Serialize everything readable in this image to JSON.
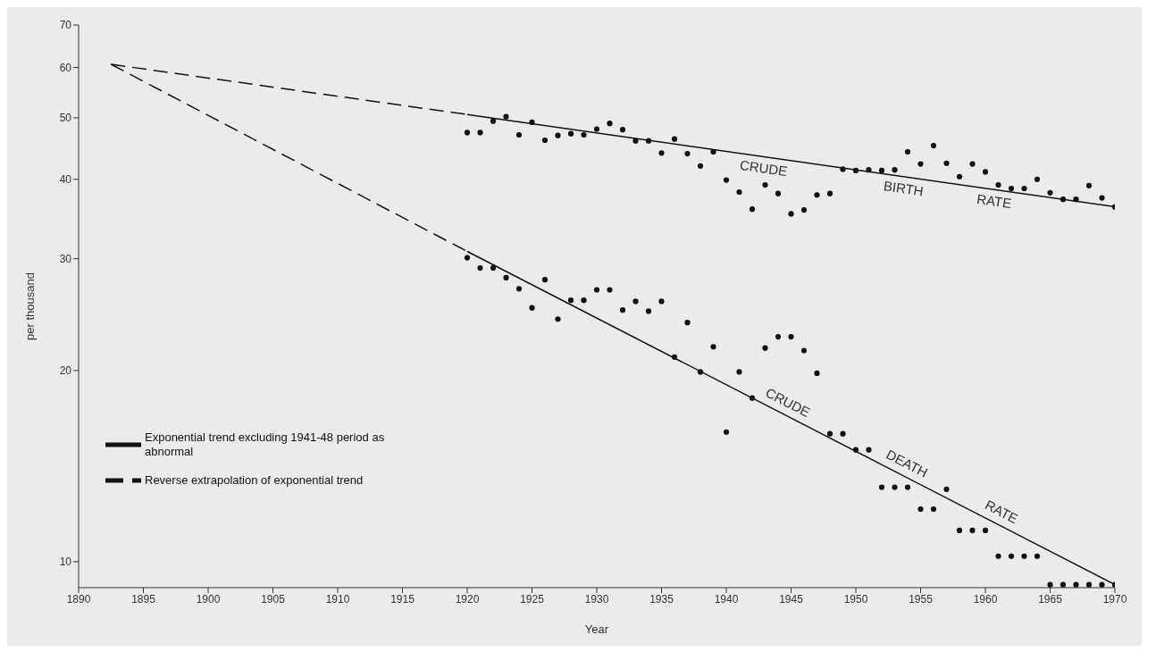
{
  "chart_data": {
    "type": "scatter",
    "xlabel": "Year",
    "ylabel": "per thousand",
    "log": "y",
    "grid": false,
    "legend": "bottom left",
    "marker": "circle",
    "xlim": [
      1890,
      1970
    ],
    "xticks": [
      1890,
      1895,
      1900,
      1905,
      1910,
      1915,
      1920,
      1925,
      1930,
      1935,
      1940,
      1945,
      1950,
      1955,
      1960,
      1965,
      1970
    ],
    "ylim": [
      9.1,
      70
    ],
    "yticks": [
      10,
      20,
      30,
      40,
      50,
      60,
      70
    ],
    "series": [
      {
        "color": "#111111",
        "x": [
          1920,
          1921,
          1922,
          1923,
          1924,
          1925,
          1926,
          1927,
          1928,
          1929,
          1930,
          1931,
          1932,
          1933,
          1934,
          1935,
          1936,
          1937,
          1938,
          1939,
          1940,
          1941,
          1942,
          1943,
          1944,
          1945,
          1946,
          1947,
          1948,
          1949,
          1950,
          1951,
          1952,
          1953,
          1954,
          1955,
          1956,
          1957,
          1958,
          1959,
          1960,
          1961,
          1962,
          1963,
          1964,
          1965,
          1966,
          1967,
          1968,
          1969,
          1970
        ],
        "values": [
          47.4,
          47.4,
          49.4,
          50.2,
          47.0,
          49.2,
          46.1,
          46.9,
          47.2,
          47.0,
          48.0,
          49.0,
          47.9,
          46.0,
          46.0,
          44.0,
          46.3,
          43.9,
          42.0,
          44.2,
          39.9,
          38.2,
          35.9,
          39.2,
          38.0,
          35.3,
          35.8,
          37.8,
          38.0,
          41.5,
          41.3,
          41.4,
          41.3,
          41.4,
          44.2,
          42.3,
          45.2,
          42.4,
          40.4,
          42.3,
          41.1,
          39.2,
          38.7,
          38.7,
          40.0,
          38.1,
          37.2,
          37.2,
          39.1,
          37.4,
          36.2
        ]
      },
      {
        "color": "#111111",
        "x": [
          1920,
          1921,
          1922,
          1923,
          1924,
          1925,
          1926,
          1927,
          1928,
          1929,
          1930,
          1931,
          1932,
          1933,
          1934,
          1935,
          1936,
          1937,
          1938,
          1939,
          1940,
          1941,
          1942,
          1943,
          1944,
          1945,
          1946,
          1947,
          1948,
          1949,
          1950,
          1951,
          1952,
          1953,
          1954,
          1955,
          1956,
          1957,
          1958,
          1959,
          1960,
          1961,
          1962,
          1963,
          1964,
          1965,
          1966,
          1967,
          1968,
          1969,
          1970
        ],
        "values": [
          30.1,
          29.0,
          29.0,
          28.0,
          26.9,
          25.1,
          27.8,
          24.1,
          25.8,
          25.8,
          26.8,
          26.8,
          24.9,
          25.7,
          24.8,
          25.7,
          21.0,
          23.8,
          19.9,
          21.8,
          16.0,
          19.9,
          18.1,
          21.7,
          22.6,
          22.6,
          21.5,
          19.8,
          15.9,
          15.9,
          15.0,
          15.0,
          13.1,
          13.1,
          13.1,
          12.1,
          12.1,
          13.0,
          11.2,
          11.2,
          11.2,
          10.2,
          10.2,
          10.2,
          10.2,
          9.2,
          9.2,
          9.2,
          9.2,
          9.2,
          9.2
        ]
      },
      {
        "type": "line",
        "name": "Exponential trend excluding 1941-48 period as abnormal",
        "color": "#111111",
        "line_style": "solid",
        "marker": "none",
        "x": [
          1920,
          1970
        ],
        "values": [
          50.6,
          36.2
        ]
      },
      {
        "type": "line",
        "color": "#111111",
        "line_style": "solid",
        "marker": "none",
        "x": [
          1920,
          1970
        ],
        "values": [
          30.8,
          9.2
        ]
      },
      {
        "type": "line",
        "name": "Reverse extrapolation of exponential trend",
        "color": "#111111",
        "line_style": "dashed",
        "marker": "none",
        "x": [
          1892.5,
          1920
        ],
        "values": [
          60.7,
          50.6
        ]
      },
      {
        "type": "line",
        "color": "#111111",
        "line_style": "dashed",
        "marker": "none",
        "x": [
          1892.5,
          1920
        ],
        "values": [
          60.7,
          30.8
        ]
      }
    ],
    "annotations": [
      {
        "text": "CRUDE",
        "x": 1943,
        "y": 43.4
      },
      {
        "text": "BIRTH",
        "x": 1953.8,
        "y": 40.3
      },
      {
        "text": "RATE",
        "x": 1960.8,
        "y": 38.5
      },
      {
        "text": "CRUDE",
        "x": 1944.3,
        "y": 17.1
      },
      {
        "text": "DEATH",
        "x": 1953.5,
        "y": 13.7
      },
      {
        "text": "RATE",
        "x": 1960.8,
        "y": 11.5
      }
    ]
  }
}
